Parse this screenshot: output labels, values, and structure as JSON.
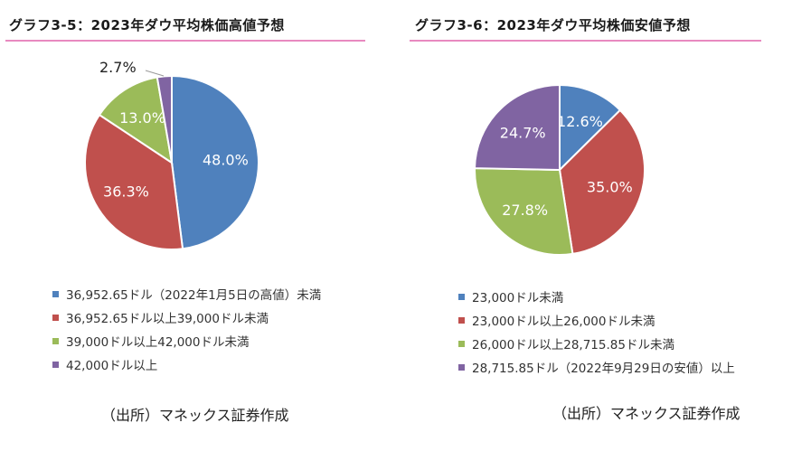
{
  "chart_data": [
    {
      "type": "pie",
      "title": "グラフ3-5：2023年ダウ平均株価高値予想",
      "categories": [
        "36,952.65ドル（2022年1月5日の高値）未満",
        "36,952.65ドル以上39,000ドル未満",
        "39,000ドル以上42,000ドル未満",
        "42,000ドル以上"
      ],
      "values": [
        48.0,
        36.3,
        13.0,
        2.7
      ],
      "data_labels": [
        "48.0%",
        "36.3%",
        "13.0%",
        "2.7%"
      ],
      "colors": [
        "#4f81bd",
        "#c0504d",
        "#9bbb59",
        "#8064a2"
      ],
      "legend_position": "bottom",
      "source": "（出所）マネックス証券作成"
    },
    {
      "type": "pie",
      "title": "グラフ3-6：2023年ダウ平均株価安値予想",
      "categories": [
        "23,000ドル未満",
        "23,000ドル以上26,000ドル未満",
        "26,000ドル以上28,715.85ドル未満",
        "28,715.85ドル（2022年9月29日の安値）以上"
      ],
      "values": [
        12.6,
        35.0,
        27.8,
        24.7
      ],
      "data_labels": [
        "12.6%",
        "35.0%",
        "27.8%",
        "24.7%"
      ],
      "colors": [
        "#4f81bd",
        "#c0504d",
        "#9bbb59",
        "#8064a2"
      ],
      "legend_position": "bottom",
      "source": "（出所）マネックス証券作成"
    }
  ]
}
